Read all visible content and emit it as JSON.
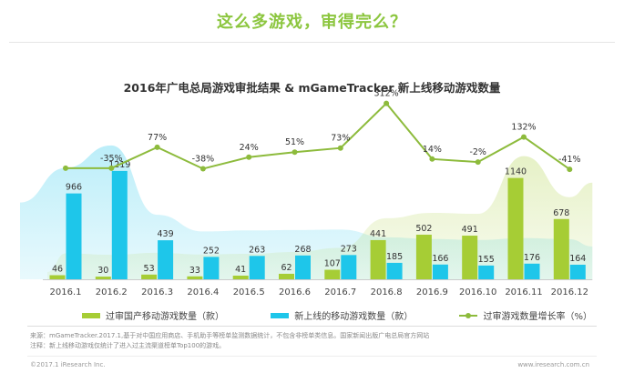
{
  "headline": "这么多游戏，审得完么？",
  "chart_data": {
    "type": "bar",
    "title": "2016年广电总局游戏审批结果 & mGameTracker 新上线移动游戏数量",
    "categories": [
      "2016.1",
      "2016.2",
      "2016.3",
      "2016.4",
      "2016.5",
      "2016.6",
      "2016.7",
      "2016.8",
      "2016.9",
      "2016.10",
      "2016.11",
      "2016.12"
    ],
    "series": [
      {
        "name": "过审国产移动游戏数量（款）",
        "type": "bar",
        "color": "#a6cd35",
        "values": [
          46,
          30,
          53,
          33,
          41,
          62,
          107,
          441,
          502,
          491,
          1140,
          678
        ]
      },
      {
        "name": "新上线的移动游戏数量（款）",
        "type": "bar",
        "color": "#1ec6ea",
        "values": [
          966,
          1219,
          439,
          252,
          263,
          268,
          273,
          185,
          166,
          155,
          176,
          164
        ]
      },
      {
        "name": "过审游戏数量增长率（%）",
        "type": "line",
        "color": "#8dbb3c",
        "values": [
          null,
          -35,
          77,
          -38,
          24,
          51,
          73,
          312,
          14,
          -2,
          132,
          -41
        ],
        "labels": [
          "",
          "-35%",
          "77%",
          "-38%",
          "24%",
          "51%",
          "73%",
          "312%",
          "14%",
          "-2%",
          "132%",
          "-41%"
        ]
      }
    ],
    "ylim": [
      0,
      1300
    ],
    "line_ylim": [
      -60,
      320
    ],
    "grid": false,
    "legend": "bottom"
  },
  "notes": {
    "source": "来源：mGameTracker.2017.1,基于对中国应用商店、手机助手等榜单监测数据统计，不包含非榜单类信息。国家新闻出版广电总局官方网站",
    "remark": "注释：新上线移动游戏仅统计了进入过主流渠道榜单Top100的游戏。"
  },
  "footer": {
    "copyright": "©2017.1 iResearch Inc.",
    "site": "www.iresearch.com.cn"
  }
}
